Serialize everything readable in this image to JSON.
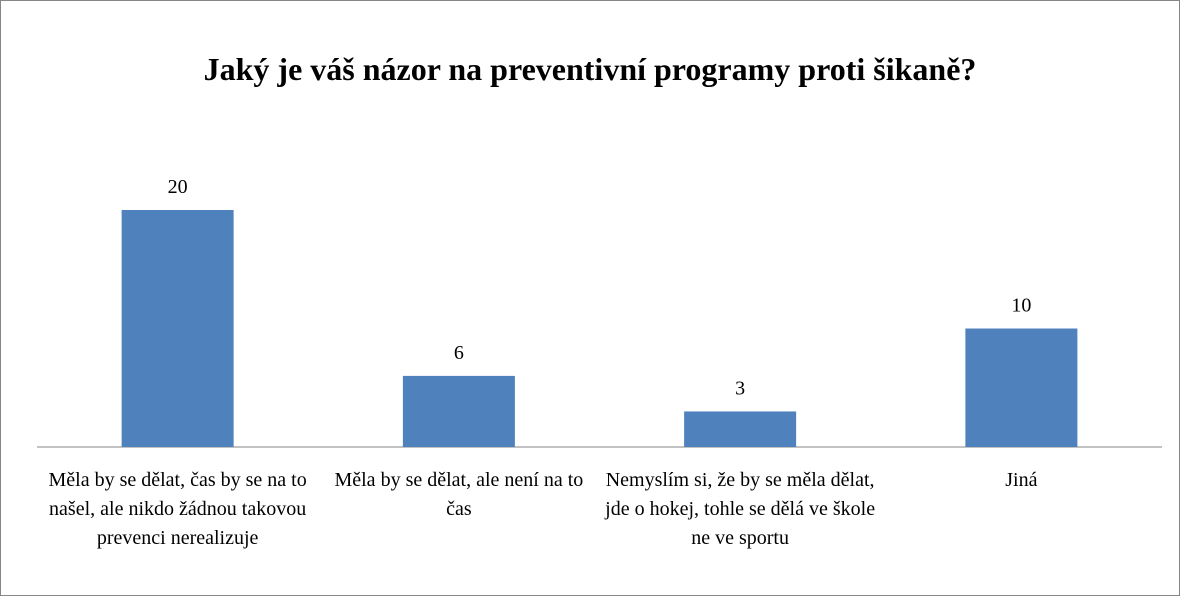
{
  "chart_data": {
    "type": "bar",
    "title": "Jaký je váš názor na preventivní programy proti šikaně?",
    "categories": [
      "Měla by se dělat, čas by se na to našel, ale nikdo žádnou takovou prevenci nerealizuje",
      "Měla by se dělat, ale není na to čas",
      "Nemyslím si, že by se měla dělat, jde o hokej, tohle se dělá ve škole ne ve sportu",
      "Jiná"
    ],
    "values": [
      20,
      6,
      3,
      10
    ],
    "color": "#4f81bd"
  }
}
